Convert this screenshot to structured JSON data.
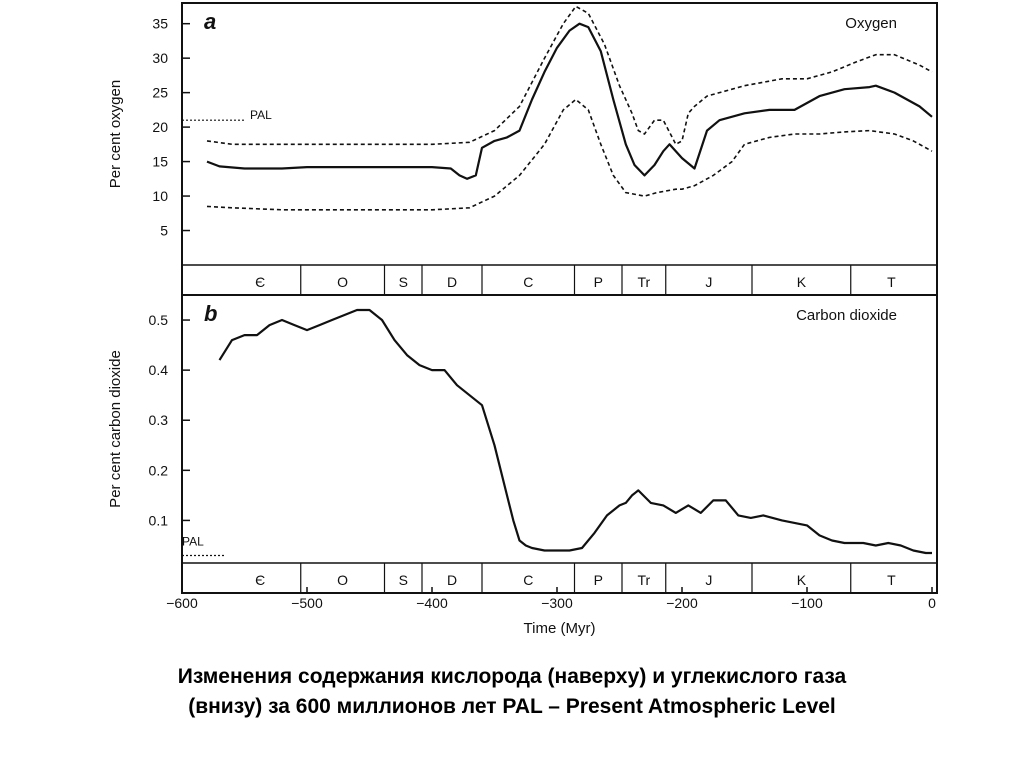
{
  "caption": {
    "line1": "Изменения содержания кислорода (наверху) и углекислого газа",
    "line2": "(внизу) за 600 миллионов лет PAL – Present Atmospheric Level"
  },
  "colors": {
    "ink": "#111111",
    "paper": "#ffffff"
  },
  "chart_data": [
    {
      "type": "line",
      "panel_letter": "a",
      "title": "Oxygen",
      "ylabel": "Per cent oxygen",
      "xlim": [
        -600,
        0
      ],
      "ylim": [
        0,
        38
      ],
      "yticks": [
        5,
        10,
        15,
        20,
        25,
        30,
        35
      ],
      "grid": false,
      "pal": {
        "label": "PAL",
        "value": 21
      },
      "periods": [
        {
          "label": "Є",
          "from": -570,
          "to": -505
        },
        {
          "label": "O",
          "from": -505,
          "to": -438
        },
        {
          "label": "S",
          "from": -438,
          "to": -408
        },
        {
          "label": "D",
          "from": -408,
          "to": -360
        },
        {
          "label": "C",
          "from": -360,
          "to": -286
        },
        {
          "label": "P",
          "from": -286,
          "to": -248
        },
        {
          "label": "Tr",
          "from": -248,
          "to": -213
        },
        {
          "label": "J",
          "from": -213,
          "to": -144
        },
        {
          "label": "K",
          "from": -144,
          "to": -65
        },
        {
          "label": "T",
          "from": -65,
          "to": 0
        }
      ],
      "series": [
        {
          "style": "solid",
          "x": [
            -580,
            -570,
            -550,
            -520,
            -500,
            -480,
            -450,
            -420,
            -400,
            -385,
            -378,
            -372,
            -365,
            -360,
            -350,
            -340,
            -330,
            -320,
            -310,
            -300,
            -290,
            -282,
            -275,
            -265,
            -255,
            -245,
            -238,
            -230,
            -222,
            -215,
            -210,
            -200,
            -190,
            -180,
            -170,
            -150,
            -130,
            -110,
            -100,
            -90,
            -70,
            -50,
            -45,
            -30,
            -10,
            0
          ],
          "y": [
            15,
            14.3,
            14,
            14,
            14.2,
            14.2,
            14.2,
            14.2,
            14.2,
            14,
            13,
            12.5,
            13,
            17,
            18,
            18.5,
            19.5,
            24,
            28,
            31.5,
            34,
            35,
            34.5,
            31,
            24,
            17.5,
            14.5,
            13,
            14.5,
            16.5,
            17.5,
            15.5,
            14,
            19.5,
            21,
            22,
            22.5,
            22.5,
            23.5,
            24.5,
            25.5,
            25.8,
            26,
            25,
            23,
            21.5
          ]
        },
        {
          "style": "dashed",
          "x": [
            -580,
            -560,
            -520,
            -480,
            -440,
            -400,
            -370,
            -350,
            -330,
            -310,
            -295,
            -285,
            -275,
            -262,
            -250,
            -240,
            -235,
            -230,
            -222,
            -215,
            -205,
            -200,
            -195,
            -190,
            -180,
            -150,
            -120,
            -100,
            -80,
            -60,
            -45,
            -30,
            -10,
            0
          ],
          "y": [
            18,
            17.5,
            17.5,
            17.5,
            17.5,
            17.5,
            17.8,
            19.5,
            23,
            30,
            35,
            37.5,
            36.5,
            32,
            26,
            22,
            19.5,
            19,
            21,
            21,
            17.5,
            18,
            22,
            23,
            24.5,
            26,
            27,
            27,
            28,
            29.5,
            30.5,
            30.5,
            29,
            28
          ]
        },
        {
          "style": "dashed",
          "x": [
            -580,
            -560,
            -520,
            -480,
            -440,
            -400,
            -370,
            -350,
            -330,
            -310,
            -295,
            -285,
            -275,
            -265,
            -255,
            -245,
            -230,
            -220,
            -205,
            -200,
            -190,
            -175,
            -160,
            -150,
            -130,
            -110,
            -90,
            -70,
            -50,
            -30,
            -15,
            0
          ],
          "y": [
            8.5,
            8.3,
            8,
            8,
            8,
            8,
            8.3,
            10,
            13,
            17.5,
            22.5,
            24,
            22.5,
            17.5,
            13,
            10.5,
            10,
            10.5,
            11,
            11,
            11.5,
            13,
            15,
            17.5,
            18.5,
            19,
            19,
            19.3,
            19.5,
            19,
            18,
            16.5
          ]
        }
      ]
    },
    {
      "type": "line",
      "panel_letter": "b",
      "title": "Carbon dioxide",
      "ylabel": "Per cent carbon dioxide",
      "xlabel": "Time (Myr)",
      "xlim": [
        -600,
        0
      ],
      "ylim": [
        0,
        0.55
      ],
      "xticks": [
        -600,
        -500,
        -400,
        -300,
        -200,
        -100,
        0
      ],
      "yticks": [
        0.1,
        0.2,
        0.3,
        0.4,
        0.5
      ],
      "grid": false,
      "pal": {
        "label": "PAL",
        "value": 0.03
      },
      "periods": [
        {
          "label": "Є",
          "from": -570,
          "to": -505
        },
        {
          "label": "O",
          "from": -505,
          "to": -438
        },
        {
          "label": "S",
          "from": -438,
          "to": -408
        },
        {
          "label": "D",
          "from": -408,
          "to": -360
        },
        {
          "label": "C",
          "from": -360,
          "to": -286
        },
        {
          "label": "P",
          "from": -286,
          "to": -248
        },
        {
          "label": "Tr",
          "from": -248,
          "to": -213
        },
        {
          "label": "J",
          "from": -213,
          "to": -144
        },
        {
          "label": "K",
          "from": -144,
          "to": -65
        },
        {
          "label": "T",
          "from": -65,
          "to": 0
        }
      ],
      "series": [
        {
          "style": "solid",
          "x": [
            -570,
            -560,
            -550,
            -540,
            -530,
            -520,
            -510,
            -500,
            -490,
            -480,
            -470,
            -460,
            -450,
            -440,
            -430,
            -420,
            -410,
            -400,
            -390,
            -380,
            -370,
            -360,
            -350,
            -340,
            -335,
            -330,
            -325,
            -320,
            -310,
            -300,
            -290,
            -280,
            -270,
            -260,
            -250,
            -245,
            -240,
            -235,
            -225,
            -215,
            -205,
            -195,
            -185,
            -175,
            -165,
            -155,
            -145,
            -135,
            -120,
            -100,
            -90,
            -80,
            -70,
            -55,
            -45,
            -35,
            -25,
            -15,
            -5,
            0
          ],
          "y": [
            0.42,
            0.46,
            0.47,
            0.47,
            0.49,
            0.5,
            0.49,
            0.48,
            0.49,
            0.5,
            0.51,
            0.52,
            0.52,
            0.5,
            0.46,
            0.43,
            0.41,
            0.4,
            0.4,
            0.37,
            0.35,
            0.33,
            0.25,
            0.15,
            0.1,
            0.06,
            0.05,
            0.045,
            0.04,
            0.04,
            0.04,
            0.045,
            0.075,
            0.11,
            0.13,
            0.135,
            0.15,
            0.16,
            0.135,
            0.13,
            0.115,
            0.13,
            0.115,
            0.14,
            0.14,
            0.11,
            0.105,
            0.11,
            0.1,
            0.09,
            0.07,
            0.06,
            0.055,
            0.055,
            0.05,
            0.055,
            0.05,
            0.04,
            0.035,
            0.035
          ]
        }
      ]
    }
  ]
}
